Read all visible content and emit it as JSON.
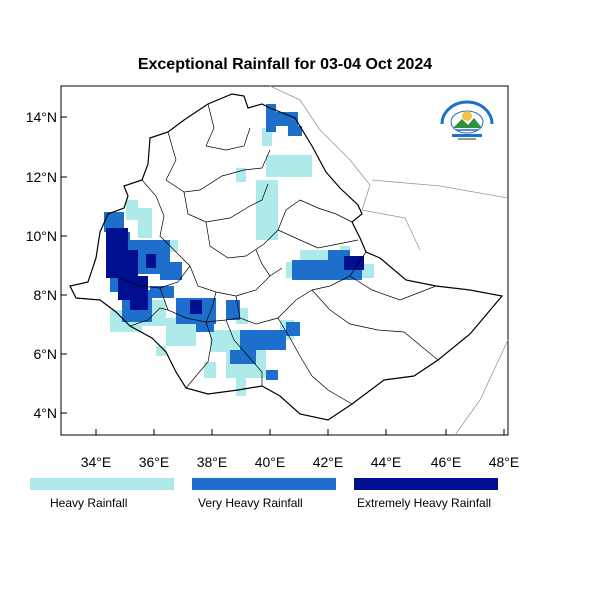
{
  "map": {
    "title": "Exceptional Rainfall for 03-04 Oct 2024",
    "lat_ticks": [
      "14°N",
      "12°N",
      "10°N",
      "8°N",
      "6°N",
      "4°N"
    ],
    "lon_ticks": [
      "34°E",
      "36°E",
      "38°E",
      "40°E",
      "42°E",
      "44°E",
      "46°E",
      "48°E"
    ],
    "extent": {
      "lon": [
        32.8,
        48.2
      ],
      "lat": [
        3.2,
        15.1
      ]
    },
    "logo_text": "Ethiopian Meteorology Institute"
  },
  "legend": [
    {
      "label": "Heavy Rainfall",
      "color": "#aeeaea"
    },
    {
      "label": "Very Heavy Rainfall",
      "color": "#1e6fcc"
    },
    {
      "label": "Extremely Heavy Rainfall",
      "color": "#000f8f"
    }
  ],
  "colors": {
    "frame": "#000000",
    "boundary": "#000000",
    "neighbor_boundary": "#999999"
  }
}
